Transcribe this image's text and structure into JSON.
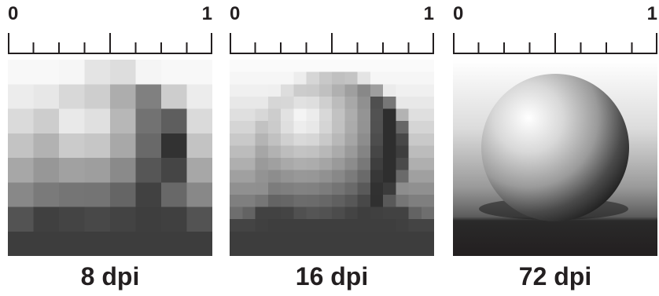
{
  "panels": [
    {
      "id": "low",
      "scale_start": "0",
      "scale_end": "1",
      "caption": "8 dpi"
    },
    {
      "id": "mid",
      "scale_start": "0",
      "scale_end": "1",
      "caption": "16 dpi"
    },
    {
      "id": "high",
      "scale_start": "0",
      "scale_end": "1",
      "caption": "72 dpi"
    }
  ]
}
